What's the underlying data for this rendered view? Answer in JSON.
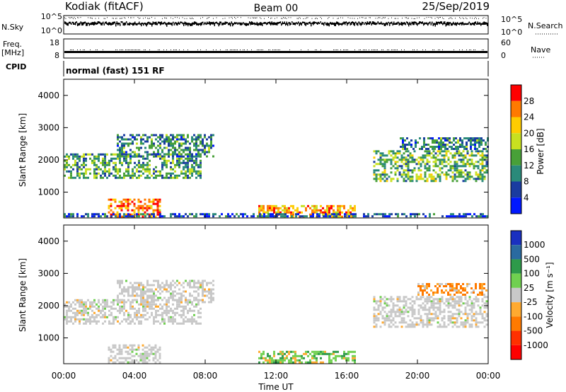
{
  "header": {
    "station": "Kodiak (fitACF)",
    "beam": "Beam 00",
    "date": "25/Sep/2019"
  },
  "strip_labels": {
    "nsky": "N.Sky",
    "nsky_ticks": [
      "10^5",
      "10^0"
    ],
    "nsearch": "N.Search",
    "nsearch_ticks": [
      "10^5",
      "10^0"
    ],
    "freq": "Freq.",
    "freq_unit": "[MHz]",
    "freq_ticks": [
      "18",
      "8"
    ],
    "nave": "Nave",
    "nave_ticks": [
      "60",
      "0"
    ],
    "cpid": "CPID",
    "cpid_value": "normal (fast) 151 RF"
  },
  "chart_data": [
    {
      "type": "heatmap",
      "name": "power",
      "ylabel": "Slant Range [km]",
      "yticks": [
        "4000",
        "3000",
        "2000",
        "1000"
      ],
      "ylim": [
        200,
        4500
      ],
      "colorbar_label": "Power [dB]",
      "colorbar_ticks": [
        "28",
        "24",
        "20",
        "16",
        "12",
        "8",
        "4"
      ],
      "colorbar_colors": [
        "#ff0000",
        "#ff7a00",
        "#ffcc00",
        "#c8e020",
        "#48a038",
        "#2a8a7a",
        "#1a3ca0",
        "#0018ff"
      ],
      "echo_regions": [
        {
          "t0": 0.0,
          "t1": 7.8,
          "r0": 1400,
          "r1": 2200,
          "level": 12
        },
        {
          "t0": 3.0,
          "t1": 8.5,
          "r0": 2100,
          "r1": 2800,
          "level": 10
        },
        {
          "t0": 2.5,
          "t1": 5.5,
          "r0": 200,
          "r1": 800,
          "level": 26
        },
        {
          "t0": 11.0,
          "t1": 16.5,
          "r0": 200,
          "r1": 600,
          "level": 24
        },
        {
          "t0": 17.5,
          "t1": 24.0,
          "r0": 1300,
          "r1": 2300,
          "level": 14
        },
        {
          "t0": 19.0,
          "t1": 24.0,
          "r0": 2300,
          "r1": 2700,
          "level": 10
        },
        {
          "t0": 0.0,
          "t1": 24.0,
          "r0": 200,
          "r1": 350,
          "level": 6
        }
      ]
    },
    {
      "type": "heatmap",
      "name": "velocity",
      "ylabel": "Slant Range [km]",
      "yticks": [
        "4000",
        "3000",
        "2000",
        "1000"
      ],
      "ylim": [
        200,
        4500
      ],
      "xlabel": "Time UT",
      "xticks": [
        "00:00",
        "04:00",
        "08:00",
        "12:00",
        "16:00",
        "20:00",
        "00:00"
      ],
      "xlim": [
        0,
        24
      ],
      "colorbar_label": "Velocity [m s⁻¹]",
      "colorbar_ticks": [
        "1000",
        "500",
        "100",
        "25",
        "-25",
        "-100",
        "-500",
        "-1000"
      ],
      "colorbar_colors": [
        "#1a30c0",
        "#2a6aa0",
        "#2e9a4a",
        "#70d050",
        "#c8c8c8",
        "#ffaa30",
        "#ff7a00",
        "#ff3000",
        "#ff0000"
      ],
      "echo_regions": [
        {
          "t0": 0.0,
          "t1": 7.8,
          "r0": 1400,
          "r1": 2200,
          "level": 0
        },
        {
          "t0": 3.0,
          "t1": 8.5,
          "r0": 2100,
          "r1": 2800,
          "level": 0
        },
        {
          "t0": 2.5,
          "t1": 5.5,
          "r0": 200,
          "r1": 800,
          "level": 0
        },
        {
          "t0": 11.0,
          "t1": 16.5,
          "r0": 200,
          "r1": 600,
          "level": 40
        },
        {
          "t0": 17.5,
          "t1": 24.0,
          "r0": 1300,
          "r1": 2300,
          "level": 0
        },
        {
          "t0": 20.0,
          "t1": 24.0,
          "r0": 2300,
          "r1": 2700,
          "level": -300
        }
      ]
    }
  ]
}
